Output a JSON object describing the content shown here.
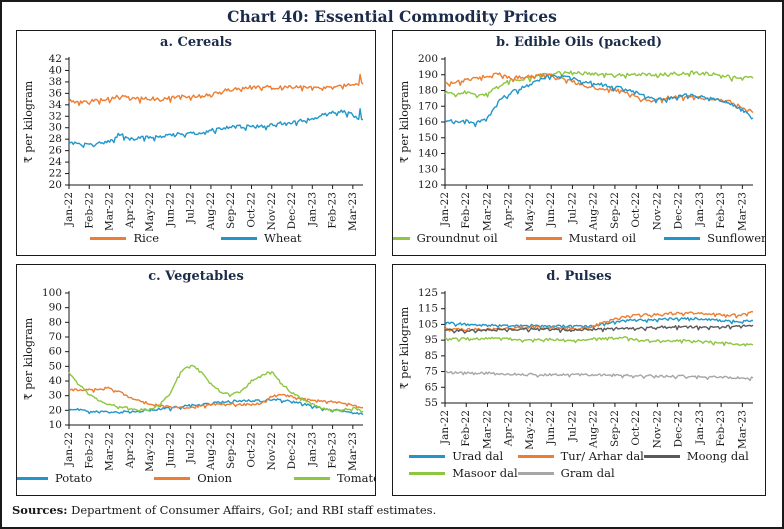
{
  "title": "Chart 40: Essential Commodity Prices",
  "footer": {
    "label": "Sources:",
    "text": " Department of Consumer Affairs, GoI; and RBI staff estimates."
  },
  "colors": {
    "orange": "#ed7d31",
    "blue": "#2196c9",
    "green": "#8dc63f",
    "dark_gray": "#595959",
    "light_gray": "#a6a6a6",
    "title_text": "#1b2b4a",
    "axis": "#1a1a1a"
  },
  "chart_data": [
    {
      "type": "line",
      "title": "a. Cereals",
      "ylabel": "₹ per kilogram",
      "ylim": [
        20,
        42
      ],
      "ytick_step": 2,
      "grid": false,
      "legend_position": "bottom",
      "noise": 0.3,
      "categories": [
        "Jan-22",
        "Feb-22",
        "Mar-22",
        "Apr-22",
        "May-22",
        "Jun-22",
        "Jul-22",
        "Aug-22",
        "Sep-22",
        "Oct-22",
        "Nov-22",
        "Dec-22",
        "Jan-23",
        "Feb-23",
        "Mar-23"
      ],
      "series": [
        {
          "name": "Rice",
          "color": "#ed7d31",
          "end_spike": 1.7,
          "values": [
            34.8,
            34.4,
            34.6,
            34.9,
            35.0,
            35.5,
            35.2,
            35.1,
            35.1,
            35.0,
            35.2,
            35.4,
            35.5,
            35.6,
            35.7,
            36.4,
            36.7,
            36.9,
            37.1,
            37.2,
            37.0,
            37.1,
            37.1,
            37.2,
            37.0,
            37.1,
            37.2,
            37.4,
            37.7,
            37.6
          ]
        },
        {
          "name": "Wheat",
          "color": "#2196c9",
          "end_spike": 1.9,
          "values": [
            27.4,
            27.1,
            27.0,
            27.3,
            27.6,
            28.9,
            28.1,
            28.2,
            28.3,
            28.5,
            28.8,
            29.0,
            29.0,
            29.2,
            29.5,
            29.9,
            30.1,
            30.2,
            30.2,
            30.3,
            30.5,
            30.8,
            31.0,
            31.3,
            31.6,
            32.2,
            32.7,
            32.9,
            32.2,
            31.4
          ]
        }
      ]
    },
    {
      "type": "line",
      "title": "b. Edible Oils (packed)",
      "ylabel": "₹ per kilogram",
      "ylim": [
        120,
        200
      ],
      "ytick_step": 10,
      "grid": false,
      "legend_position": "bottom",
      "noise": 1.0,
      "categories": [
        "Jan-22",
        "Feb-22",
        "Mar-22",
        "Apr-22",
        "May-22",
        "Jun-22",
        "Jul-22",
        "Aug-22",
        "Sep-22",
        "Oct-22",
        "Nov-22",
        "Dec-22",
        "Jan-23",
        "Feb-23",
        "Mar-23"
      ],
      "series": [
        {
          "name": "Groundnut oil",
          "color": "#8dc63f",
          "values": [
            179,
            177.5,
            179,
            176.5,
            178,
            183,
            186,
            187,
            188,
            190,
            191,
            191.5,
            191.5,
            191,
            190.5,
            190,
            189.5,
            190,
            190.5,
            190.5,
            190,
            190.5,
            191,
            191.5,
            191,
            190.5,
            189.5,
            188.5,
            188,
            187.8
          ]
        },
        {
          "name": "Mustard oil",
          "color": "#ed7d31",
          "end_spike": 2.0,
          "values": [
            184.5,
            185.5,
            186.5,
            188,
            189.5,
            190.5,
            188,
            188.5,
            189,
            189.5,
            189.5,
            187.5,
            185.5,
            183.5,
            182,
            181,
            180.5,
            179,
            176.5,
            173.5,
            174,
            175.5,
            176,
            176,
            175.5,
            175,
            174,
            172.5,
            169.5,
            166
          ]
        },
        {
          "name": "Sunflower oil",
          "color": "#2196c9",
          "values": [
            160.5,
            160.5,
            160.5,
            159.5,
            162,
            173,
            178,
            181,
            184,
            188,
            189.5,
            189,
            187.5,
            186,
            184.5,
            183.5,
            182,
            181,
            179,
            176.5,
            174.5,
            175,
            176.5,
            177,
            176.5,
            175,
            174,
            171.5,
            167.5,
            162.5
          ]
        }
      ]
    },
    {
      "type": "line",
      "title": "c. Vegetables",
      "ylabel": "₹ per kilogram",
      "ylim": [
        10,
        100
      ],
      "ytick_step": 10,
      "grid": false,
      "legend_position": "bottom",
      "noise": 0.7,
      "categories": [
        "Jan-22",
        "Feb-22",
        "Mar-22",
        "Apr-22",
        "May-22",
        "Jun-22",
        "Jul-22",
        "Aug-22",
        "Sep-22",
        "Oct-22",
        "Nov-22",
        "Dec-22",
        "Jan-23",
        "Feb-23",
        "Mar-23"
      ],
      "series": [
        {
          "name": "Potato",
          "color": "#2196c9",
          "values": [
            21,
            20.5,
            19.5,
            19,
            19,
            19,
            19,
            19.5,
            20,
            21,
            21.5,
            22.5,
            23.5,
            24,
            24.5,
            25.5,
            26,
            27,
            26.5,
            26.5,
            27.5,
            27,
            26,
            24.5,
            23,
            21.5,
            20.5,
            19.5,
            18.5,
            17
          ]
        },
        {
          "name": "Onion",
          "color": "#ed7d31",
          "values": [
            34,
            34,
            34,
            34.5,
            35.5,
            32.5,
            29,
            26.5,
            24.5,
            23,
            22.5,
            22,
            22,
            23,
            24,
            24.5,
            24.5,
            24,
            24,
            25,
            29.5,
            30.5,
            29.5,
            28,
            27,
            26.5,
            26,
            25,
            23.5,
            22
          ]
        },
        {
          "name": "Tomato",
          "color": "#8dc63f",
          "values": [
            46,
            38,
            31,
            27,
            24,
            22.5,
            21.5,
            20.5,
            20.5,
            24,
            32,
            46,
            51,
            47,
            38,
            32.5,
            31,
            33,
            40,
            44,
            46.5,
            38,
            32,
            28,
            24,
            21.5,
            20,
            20.5,
            21.5,
            19.5
          ]
        }
      ]
    },
    {
      "type": "line",
      "title": "d. Pulses",
      "ylabel": "₹ per kilogram",
      "ylim": [
        55,
        125
      ],
      "ytick_step": 10,
      "grid": false,
      "legend_position": "bottom",
      "noise": 0.7,
      "categories": [
        "Jan-22",
        "Feb-22",
        "Mar-22",
        "Apr-22",
        "May-22",
        "Jun-22",
        "Jul-22",
        "Aug-22",
        "Sep-22",
        "Oct-22",
        "Nov-22",
        "Dec-22",
        "Jan-23",
        "Feb-23",
        "Mar-23"
      ],
      "series": [
        {
          "name": "Urad dal",
          "color": "#2196c9",
          "values": [
            106,
            105.5,
            105,
            104.8,
            104.5,
            104.3,
            104.2,
            104.3,
            104.5,
            104.3,
            104.2,
            104,
            103.8,
            103.8,
            104.2,
            105.5,
            106.8,
            107.5,
            107.8,
            108,
            108.2,
            108.5,
            108.8,
            108.8,
            108.5,
            108,
            107.5,
            107.2,
            106.8,
            107.5
          ]
        },
        {
          "name": "Tur/ Arhar dal",
          "color": "#ed7d31",
          "values": [
            102,
            101.8,
            101.8,
            102,
            102.2,
            102.5,
            102.8,
            103,
            103.2,
            103.2,
            103,
            102.8,
            102.5,
            102.8,
            104,
            106.5,
            108.5,
            110,
            110.8,
            111.2,
            111.5,
            112,
            112.2,
            112.2,
            112,
            111.8,
            111.2,
            111,
            111,
            113
          ]
        },
        {
          "name": "Moong dal",
          "color": "#595959",
          "values": [
            101.5,
            101.2,
            101,
            101.2,
            101.5,
            101.8,
            102,
            102,
            102,
            102,
            101.8,
            101.8,
            101.5,
            101.8,
            102,
            102.2,
            102.5,
            102.5,
            102.5,
            102.8,
            103.2,
            103.5,
            103.5,
            103.5,
            103.3,
            103.3,
            103.5,
            103.8,
            104,
            104.5
          ]
        },
        {
          "name": "Masoor dal",
          "color": "#8dc63f",
          "values": [
            96,
            95.8,
            96,
            96,
            96.2,
            96.5,
            95.8,
            95.5,
            95.5,
            95.3,
            95.5,
            95.3,
            95,
            95.3,
            95.8,
            96,
            96.3,
            96.5,
            95.5,
            94.8,
            94.5,
            94.8,
            94.8,
            94.5,
            94.3,
            93.8,
            93.3,
            92.8,
            92.2,
            92
          ]
        },
        {
          "name": "Gram dal",
          "color": "#a6a6a6",
          "values": [
            74.5,
            74.2,
            74,
            74,
            74,
            73.8,
            73.5,
            73.3,
            73.2,
            73,
            73,
            73,
            73,
            73,
            73,
            73,
            73,
            72.8,
            72.5,
            72.3,
            72.2,
            72,
            72,
            72,
            72,
            71.8,
            71.5,
            71.2,
            71,
            71
          ]
        }
      ]
    }
  ]
}
